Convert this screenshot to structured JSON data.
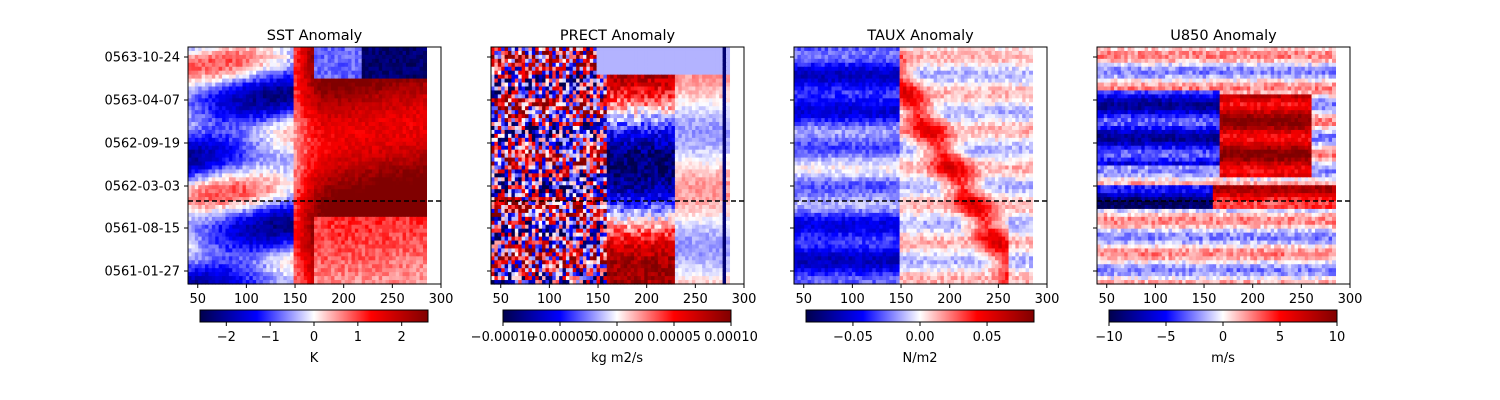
{
  "chart_data": [
    {
      "type": "heatmap",
      "title": "SST Anomaly",
      "xlim": [
        40,
        300
      ],
      "x_data_extent": [
        40,
        285
      ],
      "xticks": [
        "50",
        "100",
        "150",
        "200",
        "250",
        "300"
      ],
      "yticks": [
        "0563-10-24",
        "0563-04-07",
        "0562-09-19",
        "0562-03-03",
        "0561-08-15",
        "0561-01-27"
      ],
      "show_ytick_labels": true,
      "reference_line": "dashed",
      "colormap": "seismic",
      "colorbar": {
        "min": -2.6,
        "max": 2.6,
        "ticks": [
          "−2",
          "−1",
          "0",
          "1",
          "2"
        ],
        "label": "K"
      }
    },
    {
      "type": "heatmap",
      "title": "PRECT Anomaly",
      "xlim": [
        40,
        300
      ],
      "x_data_extent": [
        40,
        285
      ],
      "xticks": [
        "50",
        "100",
        "150",
        "200",
        "250",
        "300"
      ],
      "yticks": [
        "0563-10-24",
        "0563-04-07",
        "0562-09-19",
        "0562-03-03",
        "0561-08-15",
        "0561-01-27"
      ],
      "show_ytick_labels": false,
      "reference_line": "dashed",
      "colormap": "seismic",
      "colorbar": {
        "min": -0.0001,
        "max": 0.0001,
        "ticks": [
          "−0.00010",
          "−0.00005",
          "0.00000",
          "0.00005",
          "0.00010"
        ],
        "label": "kg m2/s"
      }
    },
    {
      "type": "heatmap",
      "title": "TAUX Anomaly",
      "xlim": [
        40,
        300
      ],
      "x_data_extent": [
        40,
        285
      ],
      "xticks": [
        "50",
        "100",
        "150",
        "200",
        "250",
        "300"
      ],
      "yticks": [
        "0563-10-24",
        "0563-04-07",
        "0562-09-19",
        "0562-03-03",
        "0561-08-15",
        "0561-01-27"
      ],
      "show_ytick_labels": false,
      "reference_line": "dashed",
      "colormap": "seismic",
      "colorbar": {
        "min": -0.085,
        "max": 0.085,
        "ticks": [
          "−0.05",
          "0.00",
          "0.05"
        ],
        "label": "N/m2"
      }
    },
    {
      "type": "heatmap",
      "title": "U850 Anomaly",
      "xlim": [
        40,
        300
      ],
      "x_data_extent": [
        40,
        285
      ],
      "xticks": [
        "50",
        "100",
        "150",
        "200",
        "250",
        "300"
      ],
      "yticks": [
        "0563-10-24",
        "0563-04-07",
        "0562-09-19",
        "0562-03-03",
        "0561-08-15",
        "0561-01-27"
      ],
      "show_ytick_labels": false,
      "reference_line": "dashed",
      "colormap": "seismic",
      "colorbar": {
        "min": -10,
        "max": 10,
        "ticks": [
          "−10",
          "−5",
          "0",
          "5",
          "10"
        ],
        "label": "m/s"
      }
    }
  ]
}
